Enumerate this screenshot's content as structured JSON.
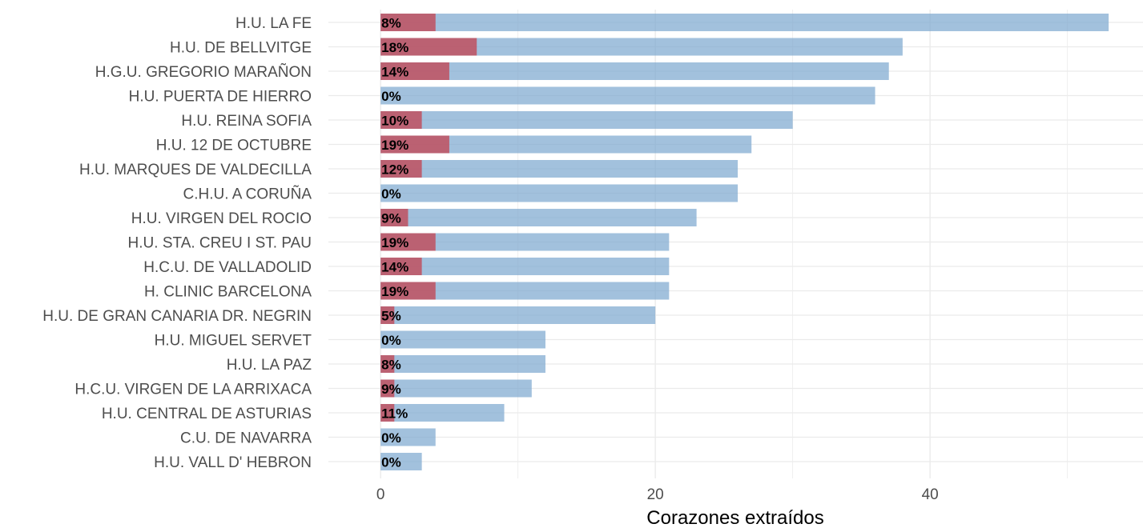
{
  "chart_data": {
    "type": "bar",
    "orientation": "horizontal",
    "categories": [
      "H.U. LA FE",
      "H.U. DE BELLVITGE",
      "H.G.U. GREGORIO MARAÑON",
      "H.U. PUERTA DE HIERRO",
      "H.U. REINA SOFIA",
      "H.U. 12 DE OCTUBRE",
      "H.U. MARQUES DE VALDECILLA",
      "C.H.U. A CORUÑA",
      "H.U. VIRGEN DEL ROCIO",
      "H.U. STA. CREU I ST. PAU",
      "H.C.U. DE VALLADOLID",
      "H. CLINIC BARCELONA",
      "H.U. DE GRAN CANARIA DR. NEGRIN",
      "H.U. MIGUEL SERVET",
      "H.U. LA PAZ",
      "H.C.U. VIRGEN DE LA ARRIXACA",
      "H.U. CENTRAL DE ASTURIAS",
      "C.U. DE NAVARRA",
      "H.U. VALL D' HEBRON"
    ],
    "series": [
      {
        "values": [
          53,
          38,
          37,
          36,
          30,
          27,
          26,
          26,
          23,
          21,
          21,
          21,
          20,
          12,
          12,
          11,
          9,
          4,
          3
        ],
        "color": "#7ba7cf"
      },
      {
        "values": [
          4,
          7,
          5,
          0,
          3,
          5,
          3,
          0,
          2,
          4,
          3,
          4,
          1,
          0,
          1,
          1,
          1,
          0,
          0
        ],
        "color": "#c0505f"
      }
    ],
    "percent_labels": [
      "8%",
      "18%",
      "14%",
      "0%",
      "10%",
      "19%",
      "12%",
      "0%",
      "9%",
      "19%",
      "14%",
      "19%",
      "5%",
      "0%",
      "8%",
      "9%",
      "11%",
      "0%",
      "0%"
    ],
    "xlabel": "Corazones extraídos",
    "ylabel": "",
    "x_ticks": [
      0,
      20,
      40
    ],
    "xlim": [
      -3.8,
      55.5
    ],
    "grid": true,
    "legend": "none"
  }
}
